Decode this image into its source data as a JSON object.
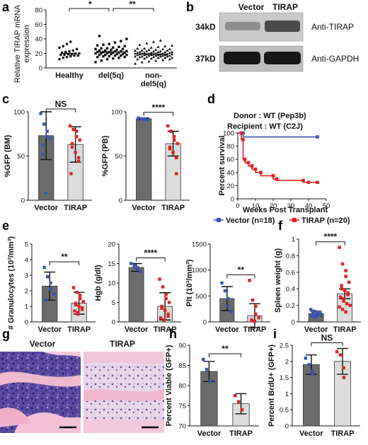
{
  "panels": {
    "a": {
      "label": "a",
      "ylabel": "Relative TIRAP mRNA expression",
      "ylabel_lines": [
        "Relative TIRAP mRNA",
        "expression"
      ],
      "sig": [
        "*",
        "**"
      ],
      "chart_data": {
        "type": "scatter",
        "categories": [
          "Healthy",
          "del(5q)",
          "non-del5(q)"
        ],
        "xtick_lines": [
          [
            "Healthy"
          ],
          [
            "del(5q)"
          ],
          [
            "non-",
            "del5(q)"
          ]
        ],
        "ylim": [
          0,
          80
        ],
        "yticks": [
          0,
          20,
          40,
          60,
          80
        ],
        "series": [
          {
            "values": [
              12,
              14,
              15,
              16,
              17,
              17,
              18,
              18,
              19,
              19,
              20,
              20,
              21,
              22,
              23,
              24,
              26,
              28,
              30,
              33,
              36
            ]
          },
          {
            "values": [
              8,
              10,
              12,
              13,
              14,
              15,
              15,
              16,
              16,
              17,
              17,
              18,
              18,
              18,
              19,
              19,
              19,
              20,
              20,
              20,
              21,
              21,
              21,
              22,
              22,
              22,
              23,
              23,
              23,
              24,
              24,
              25,
              25,
              26,
              26,
              27,
              27,
              28,
              29,
              30,
              31,
              32,
              33,
              35,
              37,
              40,
              44
            ]
          },
          {
            "values": [
              6,
              8,
              9,
              10,
              11,
              12,
              12,
              13,
              13,
              14,
              14,
              14,
              15,
              15,
              15,
              16,
              16,
              16,
              16,
              17,
              17,
              17,
              17,
              18,
              18,
              18,
              18,
              18,
              19,
              19,
              19,
              19,
              19,
              19,
              20,
              20,
              20,
              20,
              20,
              21,
              21,
              21,
              21,
              22,
              22,
              22,
              22,
              23,
              23,
              23,
              24,
              24,
              24,
              25,
              25,
              26,
              26,
              27,
              27,
              28,
              29,
              30,
              31,
              32,
              34,
              36,
              38
            ]
          }
        ],
        "means": [
          20,
          22,
          19
        ]
      }
    },
    "b": {
      "label": "b",
      "lanes": [
        "Vector",
        "TIRAP"
      ],
      "rows": [
        {
          "size": "34kD",
          "antibody": "Anti-TIRAP"
        },
        {
          "size": "37kD",
          "antibody": "Anti-GAPDH"
        }
      ]
    },
    "c": {
      "label": "c",
      "charts": [
        {
          "ylabel": "%GFP (BM)",
          "sig": "NS",
          "chart_data": {
            "type": "bar",
            "categories": [
              "Vector",
              "TIRAP"
            ],
            "values": [
              73,
              63
            ],
            "err": [
              27,
              20
            ],
            "ylim": [
              0,
              100
            ],
            "yticks": [
              0,
              50,
              100
            ],
            "points": [
              [
                98,
                86,
                78,
                72,
                70,
                62,
                52,
                8
              ],
              [
                84,
                80,
                78,
                72,
                68,
                64,
                60,
                54,
                48,
                44,
                30
              ]
            ]
          }
        },
        {
          "ylabel": "%GFP (PB)",
          "sig": "****",
          "chart_data": {
            "type": "bar",
            "categories": [
              "Vector",
              "TIRAP"
            ],
            "values": [
              92,
              64
            ],
            "err": [
              1,
              14
            ],
            "ylim": [
              0,
              100
            ],
            "yticks": [
              0,
              50,
              100
            ],
            "points": [
              [
                93,
                92,
                92,
                91,
                91
              ],
              [
                84,
                78,
                72,
                68,
                64,
                60,
                58,
                54,
                48,
                30
              ]
            ]
          }
        }
      ]
    },
    "d": {
      "label": "d",
      "donor": "Donor : WT (Pep3b)",
      "recipient": "Recipient : WT (C2J)",
      "ylabel": "Percent survival",
      "xlabel": "Weeks Post Transplant",
      "legend": [
        {
          "name": "Vector (n=18)",
          "color": "#3a55b4"
        },
        {
          "name": "TIRAP (n=20)",
          "color": "#e02020"
        }
      ],
      "chart_data": {
        "type": "line",
        "xlim": [
          0,
          50
        ],
        "ylim": [
          0,
          100
        ],
        "xticks": [
          0,
          10,
          20,
          30,
          40,
          50
        ],
        "yticks": [
          0,
          20,
          40,
          60,
          80,
          100
        ],
        "series": [
          {
            "name": "Vector (n=18)",
            "x": [
              0,
              3,
              3,
              45
            ],
            "y": [
              100,
              100,
              94,
              94
            ]
          },
          {
            "name": "TIRAP (n=20)",
            "x": [
              0,
              2,
              2,
              3,
              3,
              4,
              4,
              6,
              6,
              8,
              8,
              10,
              10,
              13,
              13,
              20,
              20,
              22,
              22,
              37,
              37,
              40,
              40,
              45
            ],
            "y": [
              100,
              100,
              90,
              90,
              60,
              60,
              55,
              55,
              50,
              50,
              45,
              45,
              40,
              40,
              35,
              35,
              30,
              30,
              28,
              28,
              25,
              25,
              25,
              25
            ]
          }
        ]
      }
    },
    "e": {
      "label": "e",
      "charts": [
        {
          "ylabel": "# Granulocytes (10³/mm³)",
          "sig": "**",
          "chart_data": {
            "type": "bar",
            "categories": [
              "Vector",
              "TIRAP"
            ],
            "values": [
              2.3,
              1.2
            ],
            "err": [
              0.9,
              0.7
            ],
            "ylim": [
              0,
              5
            ],
            "yticks": [
              0,
              1,
              2,
              3,
              4,
              5
            ],
            "points": [
              [
                3.5,
                2.9,
                2.5,
                2.1,
                1.8,
                1.4
              ],
              [
                2.2,
                1.9,
                1.7,
                1.5,
                1.3,
                1.2,
                1.1,
                1.0,
                0.9,
                0.8,
                0.7,
                0.6,
                0.5
              ]
            ]
          }
        },
        {
          "ylabel": "Hgb (g/dl)",
          "sig": "****",
          "chart_data": {
            "type": "bar",
            "categories": [
              "Vector",
              "TIRAP"
            ],
            "values": [
              14,
              4
            ],
            "err": [
              1,
              3.5
            ],
            "ylim": [
              0,
              20
            ],
            "yticks": [
              0,
              5,
              10,
              15,
              20
            ],
            "points": [
              [
                15,
                14.5,
                14,
                13.5,
                13
              ],
              [
                11,
                9,
                7,
                6,
                5,
                4,
                3.5,
                3,
                2,
                1.5,
                1,
                0.5
              ]
            ]
          }
        },
        {
          "ylabel": "Plt (10³/mm³)",
          "sig": "**",
          "chart_data": {
            "type": "bar",
            "categories": [
              "Vector",
              "TIRAP"
            ],
            "values": [
              450,
              120
            ],
            "err": [
              230,
              230
            ],
            "ylim": [
              0,
              1500
            ],
            "yticks": [
              0,
              500,
              1000,
              1500
            ],
            "points": [
              [
                750,
                600,
                450,
                300,
                200
              ],
              [
                800,
                420,
                300,
                150,
                80,
                40,
                20,
                10
              ]
            ]
          }
        }
      ]
    },
    "f": {
      "label": "f",
      "ylabel": "Spleen weight (g)",
      "sig": "****",
      "chart_data": {
        "type": "bar",
        "categories": [
          "Vector",
          "TIRAP"
        ],
        "values": [
          0.1,
          0.34
        ],
        "err": [
          0.03,
          0.06
        ],
        "ylim": [
          0,
          1.0
        ],
        "yticks": [
          0.0,
          0.2,
          0.4,
          0.6,
          0.8,
          1.0
        ],
        "points": [
          [
            0.15,
            0.13,
            0.12,
            0.11,
            0.1,
            0.1,
            0.09,
            0.09,
            0.08,
            0.08,
            0.07,
            0.06
          ],
          [
            0.9,
            0.7,
            0.62,
            0.55,
            0.48,
            0.44,
            0.4,
            0.38,
            0.35,
            0.33,
            0.3,
            0.28,
            0.25,
            0.22,
            0.2,
            0.18,
            0.15,
            0.12
          ]
        ]
      }
    },
    "g": {
      "label": "g",
      "images": [
        "Vector",
        "TIRAP"
      ]
    },
    "h": {
      "label": "h",
      "ylabel": "Percent Viable (GFP+)",
      "sig": "**",
      "chart_data": {
        "type": "bar",
        "categories": [
          "Vector",
          "TIRAP"
        ],
        "values": [
          83.5,
          75.5
        ],
        "err": [
          2.5,
          2.5
        ],
        "ylim": [
          70,
          90
        ],
        "yticks": [
          70,
          75,
          80,
          85,
          90
        ],
        "points": [
          [
            86.5,
            84,
            81
          ],
          [
            77.5,
            76,
            74
          ]
        ]
      }
    },
    "i": {
      "label": "i",
      "ylabel": "Percent BrdU+ (GFP+)",
      "sig": "NS",
      "chart_data": {
        "type": "bar",
        "categories": [
          "Vector",
          "TIRAP"
        ],
        "values": [
          1.9,
          2.0
        ],
        "err": [
          0.3,
          0.4
        ],
        "ylim": [
          0.0,
          2.5
        ],
        "yticks": [
          0.0,
          0.5,
          1.0,
          1.5,
          2.0,
          2.5
        ],
        "points": [
          [
            2.1,
            1.9,
            1.7,
            1.6
          ],
          [
            2.3,
            2.2,
            1.8,
            1.5
          ]
        ]
      }
    }
  },
  "colors": {
    "vector": "#3a55b4",
    "tirap": "#e02020",
    "vector_bar": "#6b6b6b",
    "tirap_bar": "#dcdcdc"
  }
}
